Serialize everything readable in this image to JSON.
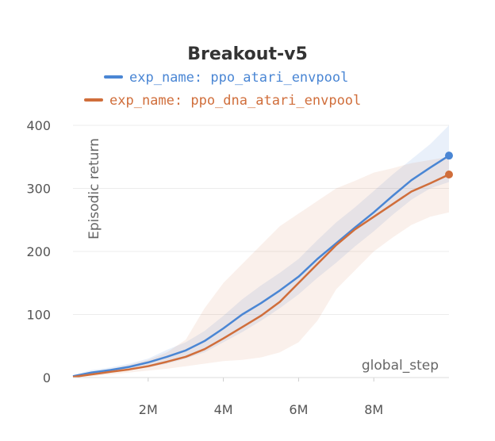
{
  "chart_data": {
    "type": "line",
    "title": "Breakout-v5",
    "xlabel": "global_step",
    "ylabel": "Episodic return",
    "xlim": [
      0,
      10000000
    ],
    "ylim": [
      0,
      400
    ],
    "x_ticks": [
      {
        "value": 2000000,
        "label": "2M"
      },
      {
        "value": 4000000,
        "label": "4M"
      },
      {
        "value": 6000000,
        "label": "6M"
      },
      {
        "value": 8000000,
        "label": "8M"
      }
    ],
    "y_ticks": [
      {
        "value": 0,
        "label": "0"
      },
      {
        "value": 100,
        "label": "100"
      },
      {
        "value": 200,
        "label": "200"
      },
      {
        "value": 300,
        "label": "300"
      },
      {
        "value": 400,
        "label": "400"
      }
    ],
    "grid": true,
    "legend_position": "top",
    "series": [
      {
        "name": "exp_name: ppo_atari_envpool",
        "color": "#4a86d4",
        "x": [
          0,
          500000,
          1000000,
          1500000,
          2000000,
          2500000,
          3000000,
          3500000,
          4000000,
          4500000,
          5000000,
          5500000,
          6000000,
          6500000,
          7000000,
          7500000,
          8000000,
          8500000,
          9000000,
          9500000,
          10000000
        ],
        "y": [
          2,
          8,
          12,
          17,
          24,
          33,
          43,
          58,
          78,
          100,
          118,
          138,
          160,
          188,
          213,
          238,
          262,
          288,
          313,
          333,
          352
        ],
        "lower": [
          0,
          4,
          8,
          12,
          16,
          22,
          30,
          40,
          56,
          72,
          90,
          110,
          132,
          158,
          182,
          208,
          232,
          258,
          282,
          300,
          310
        ],
        "upper": [
          4,
          12,
          16,
          22,
          30,
          44,
          56,
          74,
          98,
          124,
          146,
          166,
          188,
          218,
          246,
          270,
          296,
          322,
          346,
          370,
          400
        ]
      },
      {
        "name": "exp_name: ppo_dna_atari_envpool",
        "color": "#d06e3b",
        "x": [
          0,
          500000,
          1000000,
          1500000,
          2000000,
          2500000,
          3000000,
          3500000,
          4000000,
          4500000,
          5000000,
          5500000,
          6000000,
          6500000,
          7000000,
          7500000,
          8000000,
          8500000,
          9000000,
          9500000,
          10000000
        ],
        "y": [
          1,
          5,
          9,
          13,
          18,
          25,
          33,
          45,
          62,
          80,
          98,
          120,
          150,
          180,
          210,
          235,
          255,
          275,
          295,
          308,
          322
        ],
        "lower": [
          0,
          2,
          5,
          8,
          11,
          14,
          18,
          22,
          26,
          28,
          32,
          40,
          56,
          90,
          140,
          170,
          200,
          222,
          242,
          255,
          262
        ],
        "upper": [
          3,
          8,
          14,
          20,
          28,
          40,
          60,
          110,
          150,
          180,
          210,
          240,
          260,
          280,
          300,
          312,
          325,
          332,
          340,
          345,
          350
        ]
      }
    ]
  }
}
